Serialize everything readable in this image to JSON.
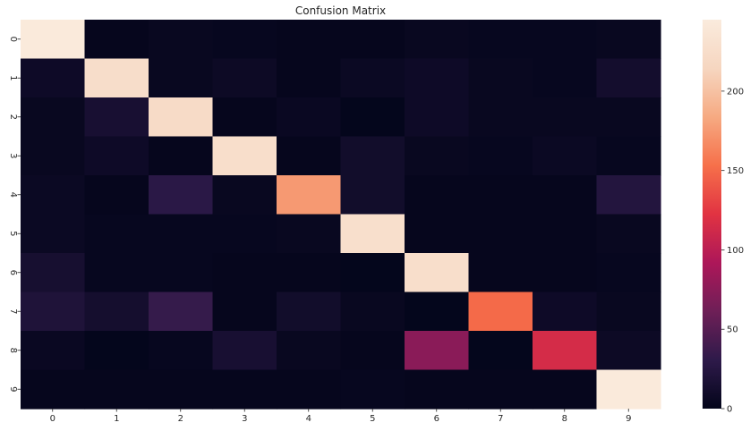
{
  "chart_data": {
    "type": "heatmap",
    "title": "Confusion Matrix",
    "xlabel": "",
    "ylabel": "",
    "x_ticks": [
      "0",
      "1",
      "2",
      "3",
      "4",
      "5",
      "6",
      "7",
      "8",
      "9"
    ],
    "y_ticks": [
      "0",
      "1",
      "2",
      "3",
      "4",
      "5",
      "6",
      "7",
      "8",
      "9"
    ],
    "matrix": [
      [
        243,
        2,
        4,
        3,
        2,
        2,
        4,
        3,
        3,
        4
      ],
      [
        8,
        225,
        4,
        7,
        2,
        6,
        8,
        4,
        3,
        12
      ],
      [
        4,
        15,
        222,
        2,
        5,
        1,
        8,
        4,
        4,
        4
      ],
      [
        4,
        8,
        2,
        226,
        2,
        11,
        4,
        3,
        6,
        3
      ],
      [
        6,
        2,
        28,
        4,
        175,
        11,
        2,
        2,
        2,
        23
      ],
      [
        6,
        3,
        3,
        3,
        4,
        227,
        2,
        2,
        2,
        4
      ],
      [
        14,
        3,
        3,
        2,
        2,
        1,
        226,
        2,
        2,
        3
      ],
      [
        20,
        13,
        34,
        2,
        11,
        4,
        1,
        150,
        8,
        4
      ],
      [
        5,
        1,
        3,
        15,
        4,
        2,
        75,
        1,
        115,
        7
      ],
      [
        2,
        2,
        2,
        2,
        2,
        3,
        2,
        2,
        2,
        243
      ]
    ],
    "value_range": [
      0,
      245
    ],
    "colorbar_ticks": [
      0,
      50,
      100,
      150,
      200
    ],
    "colormap": [
      "#03051a",
      "#2e1a4a",
      "#6e1f57",
      "#ad1759",
      "#e13342",
      "#f6704a",
      "#f6aa82",
      "#f6d6c0",
      "#faebdd"
    ],
    "grid": false
  }
}
